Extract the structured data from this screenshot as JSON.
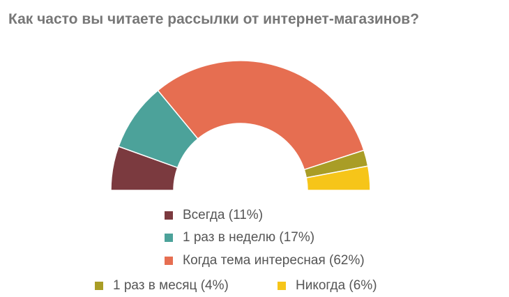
{
  "chart_data": {
    "type": "pie",
    "variant": "half-donut",
    "title": "Как часто вы читаете рассылки от интернет-магазинов?",
    "slices": [
      {
        "label": "Всегда (11%)",
        "value": 11,
        "color": "#7b3a3f"
      },
      {
        "label": "1 раз в неделю (17%)",
        "value": 17,
        "color": "#4ca29a"
      },
      {
        "label": "Когда тема интересная (62%)",
        "value": 62,
        "color": "#e66e51"
      },
      {
        "label": "1 раз в месяц (4%)",
        "value": 4,
        "color": "#a99d26"
      },
      {
        "label": "Никогда (6%)",
        "value": 6,
        "color": "#f6c519"
      }
    ],
    "legend_position": "bottom"
  }
}
